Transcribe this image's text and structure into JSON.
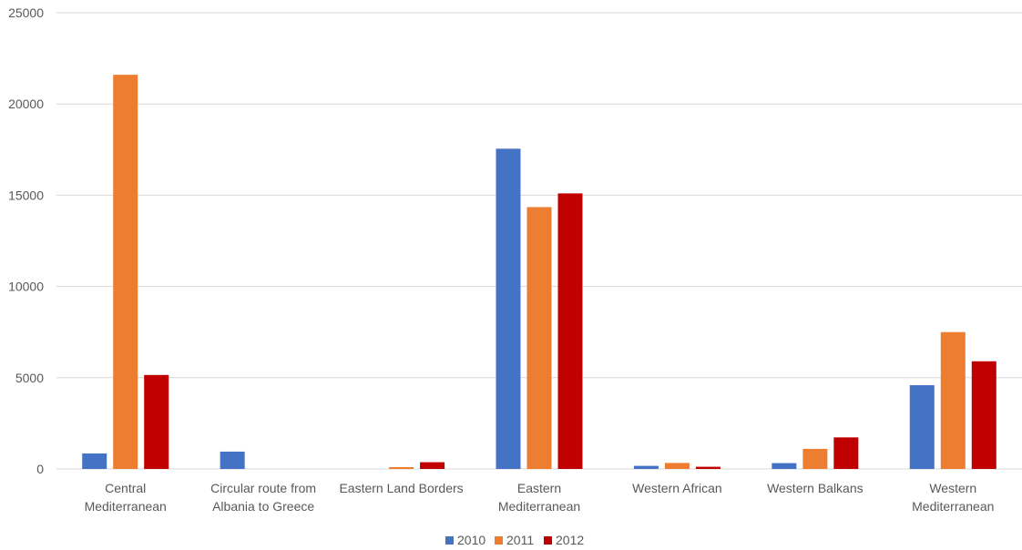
{
  "chart_data": {
    "type": "bar",
    "categories": [
      "Central Mediterranean",
      "Circular route from Albania to Greece",
      "Eastern Land Borders",
      "Eastern Mediterranean",
      "Western African",
      "Western Balkans",
      "Western Mediterranean"
    ],
    "category_label_lines": [
      [
        "Central",
        "Mediterranean"
      ],
      [
        "Circular route from",
        "Albania to Greece"
      ],
      [
        "Eastern Land Borders"
      ],
      [
        "Eastern",
        "Mediterranean"
      ],
      [
        "Western African"
      ],
      [
        "Western Balkans"
      ],
      [
        "Western",
        "Mediterranean"
      ]
    ],
    "series": [
      {
        "name": "2010",
        "color": "#4472C4",
        "values": [
          850,
          950,
          0,
          17550,
          170,
          320,
          4590
        ]
      },
      {
        "name": "2011",
        "color": "#ED7D31",
        "values": [
          21600,
          0,
          100,
          14350,
          330,
          1100,
          7500
        ]
      },
      {
        "name": "2012",
        "color": "#C00000",
        "values": [
          5150,
          0,
          370,
          15100,
          120,
          1730,
          5900
        ]
      }
    ],
    "ylim": [
      0,
      25000
    ],
    "yticks": [
      0,
      5000,
      10000,
      15000,
      20000,
      25000
    ],
    "ytick_labels": [
      "0",
      "5000",
      "10000",
      "15000",
      "20000",
      "25000"
    ],
    "grid": true,
    "legend_position": "bottom",
    "title": "",
    "xlabel": "",
    "ylabel": ""
  }
}
